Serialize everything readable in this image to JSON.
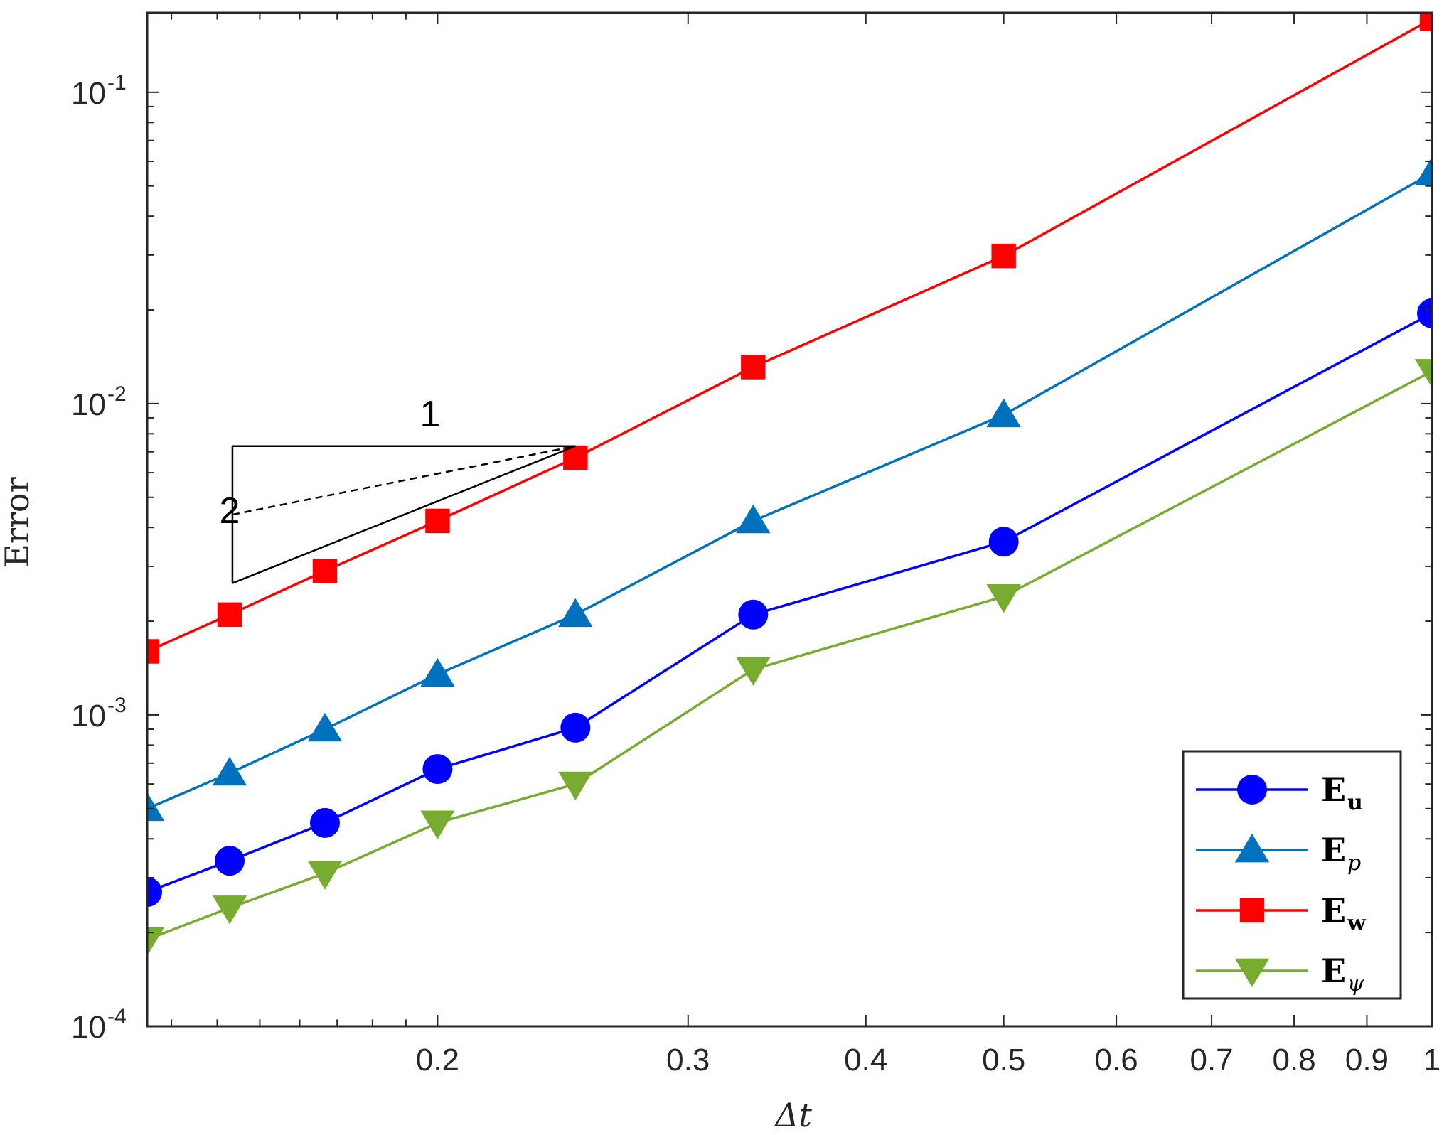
{
  "chart_data": {
    "type": "line",
    "xlabel": "Δt",
    "ylabel": "Error",
    "x_scale": "log",
    "y_scale": "log",
    "xlim": [
      0.125,
      1
    ],
    "ylim": [
      0.0001,
      0.18
    ],
    "x_ticks": [
      {
        "value": 0.2,
        "label": "0.2"
      },
      {
        "value": 0.3,
        "label": "0.3"
      },
      {
        "value": 0.4,
        "label": "0.4"
      },
      {
        "value": 0.5,
        "label": "0.5"
      },
      {
        "value": 0.6,
        "label": "0.6"
      },
      {
        "value": 0.7,
        "label": "0.7"
      },
      {
        "value": 0.8,
        "label": "0.8"
      },
      {
        "value": 0.9,
        "label": "0.9"
      },
      {
        "value": 1,
        "label": "1"
      }
    ],
    "y_ticks": [
      {
        "value": 0.0001,
        "base": "10",
        "exp": "-4"
      },
      {
        "value": 0.001,
        "base": "10",
        "exp": "-3"
      },
      {
        "value": 0.01,
        "base": "10",
        "exp": "-2"
      },
      {
        "value": 0.1,
        "base": "10",
        "exp": "-1"
      }
    ],
    "x": [
      0.125,
      0.142857,
      0.166667,
      0.2,
      0.25,
      0.333333,
      0.5,
      1
    ],
    "series": [
      {
        "name": "E_u",
        "legend_main": "E",
        "legend_sub": "u",
        "color": "#0000ff",
        "marker": "circle",
        "values": [
          0.00027,
          0.00034,
          0.00045,
          0.00067,
          0.00091,
          0.0021,
          0.0036,
          0.0195
        ]
      },
      {
        "name": "E_p",
        "legend_main": "E",
        "legend_sub": "p",
        "color": "#0072bd",
        "marker": "triangle-up",
        "values": [
          0.0005,
          0.00065,
          0.0009,
          0.00135,
          0.0021,
          0.0042,
          0.0092,
          0.055
        ]
      },
      {
        "name": "E_w",
        "legend_main": "E",
        "legend_sub": "w",
        "color": "#ff0000",
        "marker": "square",
        "values": [
          0.0016,
          0.0021,
          0.0029,
          0.0042,
          0.0067,
          0.0131,
          0.0298,
          0.172
        ]
      },
      {
        "name": "E_ψ",
        "legend_main": "E",
        "legend_sub": "ψ",
        "color": "#77ac30",
        "marker": "triangle-down",
        "values": [
          0.00019,
          0.00024,
          0.00031,
          0.00045,
          0.0006,
          0.0014,
          0.0024,
          0.0127
        ]
      }
    ],
    "slope_triangle": {
      "run_label": "1",
      "rise_label": "2",
      "apex": [
        0.25,
        0.0073
      ],
      "x_left": 0.1435,
      "slope2_y_left": 0.00265,
      "slope1_y_left": 0.0044
    },
    "legend": {
      "placement": "bottom-right",
      "boxed": true
    },
    "grid": false,
    "box": true
  }
}
